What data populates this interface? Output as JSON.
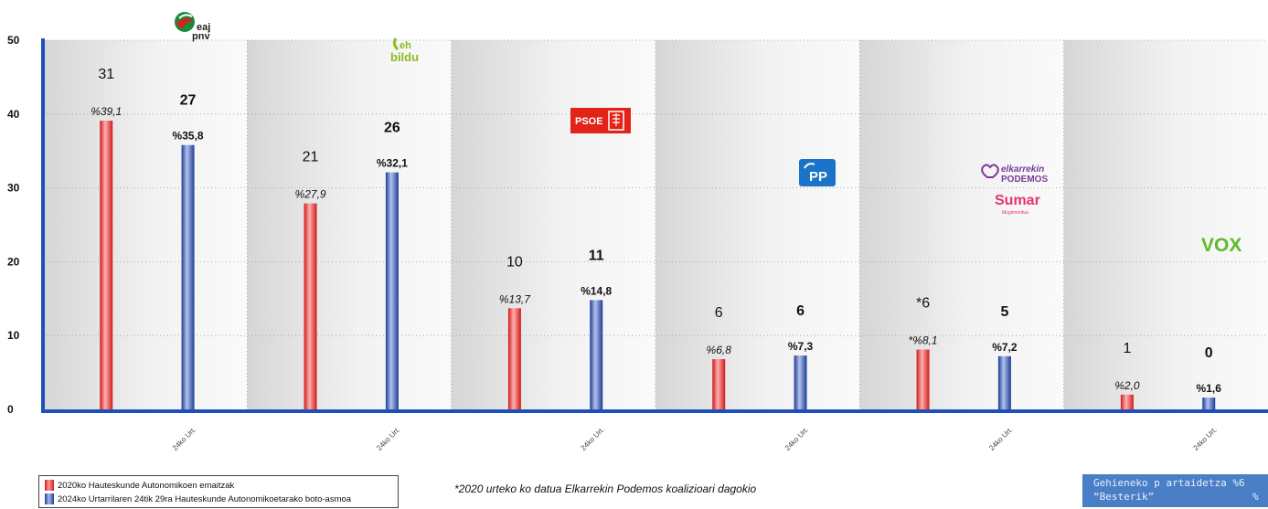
{
  "chart_data": {
    "type": "bar",
    "ylim": [
      0,
      50
    ],
    "yticks": [
      0,
      10,
      20,
      30,
      40,
      50
    ],
    "grid": true,
    "legend_position": "bottom-left",
    "groups": [
      {
        "logo": "eaj-pnv",
        "tick_label": "24ko Urt.",
        "v2020": 39.1,
        "v2024": 35.8,
        "label2020": "%39,1",
        "label2024": "%35,8",
        "seats2020": "31",
        "seats2024": "27"
      },
      {
        "logo": "eh-bildu",
        "tick_label": "24ko Urt.",
        "v2020": 27.9,
        "v2024": 32.1,
        "label2020": "%27,9",
        "label2024": "%32,1",
        "seats2020": "21",
        "seats2024": "26"
      },
      {
        "logo": "psoe",
        "tick_label": "24ko Urt.",
        "v2020": 13.7,
        "v2024": 14.8,
        "label2020": "%13,7",
        "label2024": "%14,8",
        "seats2020": "10",
        "seats2024": "11"
      },
      {
        "logo": "pp",
        "tick_label": "24ko Urt.",
        "v2020": 6.8,
        "v2024": 7.3,
        "label2020": "%6,8",
        "label2024": "%7,3",
        "seats2020": "6",
        "seats2024": "6"
      },
      {
        "logo": "elkarrekin-podemos-sumar",
        "tick_label": "24ko Urt.",
        "v2020": 8.1,
        "v2024": 7.2,
        "label2020": "*%8,1",
        "label2024": "%7,2",
        "seats2020": "*6",
        "seats2024": "5"
      },
      {
        "logo": "vox",
        "tick_label": "24ko Urt.",
        "v2020": 2.0,
        "v2024": 1.6,
        "label2020": "%2,0",
        "label2024": "%1,6",
        "seats2020": "1",
        "seats2024": "0"
      }
    ],
    "series": [
      {
        "name": "2020ko Hauteskunde Autonomikoen emaitzak",
        "color": "#e02020"
      },
      {
        "name": "2024ko Urtarrilaren 24tik 29ra Hauteskunde Autonomikoetarako boto-asmoa",
        "color": "#2a4ea8"
      }
    ]
  },
  "logos": {
    "eaj": "eaj",
    "pnv": "pnv",
    "eh": "eh",
    "bildu": "bildu",
    "psoe": "PSOE",
    "pp": "PP",
    "elkarrekin": "elkarrekin",
    "podemos": "PODEMOS",
    "sumar": "Sumar",
    "mugimendua": "Mugimendua",
    "vox": "VOX"
  },
  "colors": {
    "axis": "#1f4fb8",
    "band_dark": "#dcdcdc",
    "band_light": "#f4f4f4",
    "red": "#e02020",
    "blue": "#2a4ea8"
  },
  "legend": {
    "item1": "2020ko Hauteskunde Autonomikoen emaitzak",
    "item2": "2024ko Urtarrilaren 24tik 29ra Hauteskunde Autonomikoetarako boto-asmoa"
  },
  "note": "*2020 urteko ko datua Elkarrekin Podemos koalizioari dagokio",
  "info_box": {
    "line1": "Gehieneko p artaidetza %6",
    "line2a": "“Besterik”",
    "line2b": "%"
  }
}
